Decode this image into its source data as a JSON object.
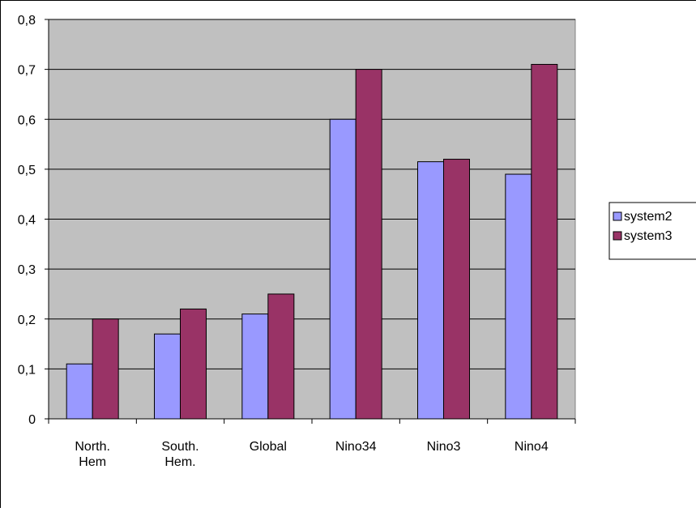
{
  "chart_data": {
    "type": "bar",
    "categories": [
      [
        "North.",
        "Hem"
      ],
      [
        "South.",
        "Hem."
      ],
      [
        "Global"
      ],
      [
        "Nino34"
      ],
      [
        "Nino3"
      ],
      [
        "Nino4"
      ]
    ],
    "series": [
      {
        "name": "system2",
        "values": [
          0.11,
          0.17,
          0.21,
          0.6,
          0.515,
          0.49
        ],
        "color": "#9999ff"
      },
      {
        "name": "system3",
        "values": [
          0.2,
          0.22,
          0.25,
          0.7,
          0.52,
          0.71
        ],
        "color": "#993366"
      }
    ],
    "ylim": [
      0,
      0.8
    ],
    "yticks": [
      "0",
      "0,1",
      "0,2",
      "0,3",
      "0,4",
      "0,5",
      "0,6",
      "0,7",
      "0,8"
    ],
    "title": "",
    "xlabel": "",
    "ylabel": "",
    "grid": true,
    "plot_background": "#c0c0c0",
    "legend_position": "right"
  }
}
